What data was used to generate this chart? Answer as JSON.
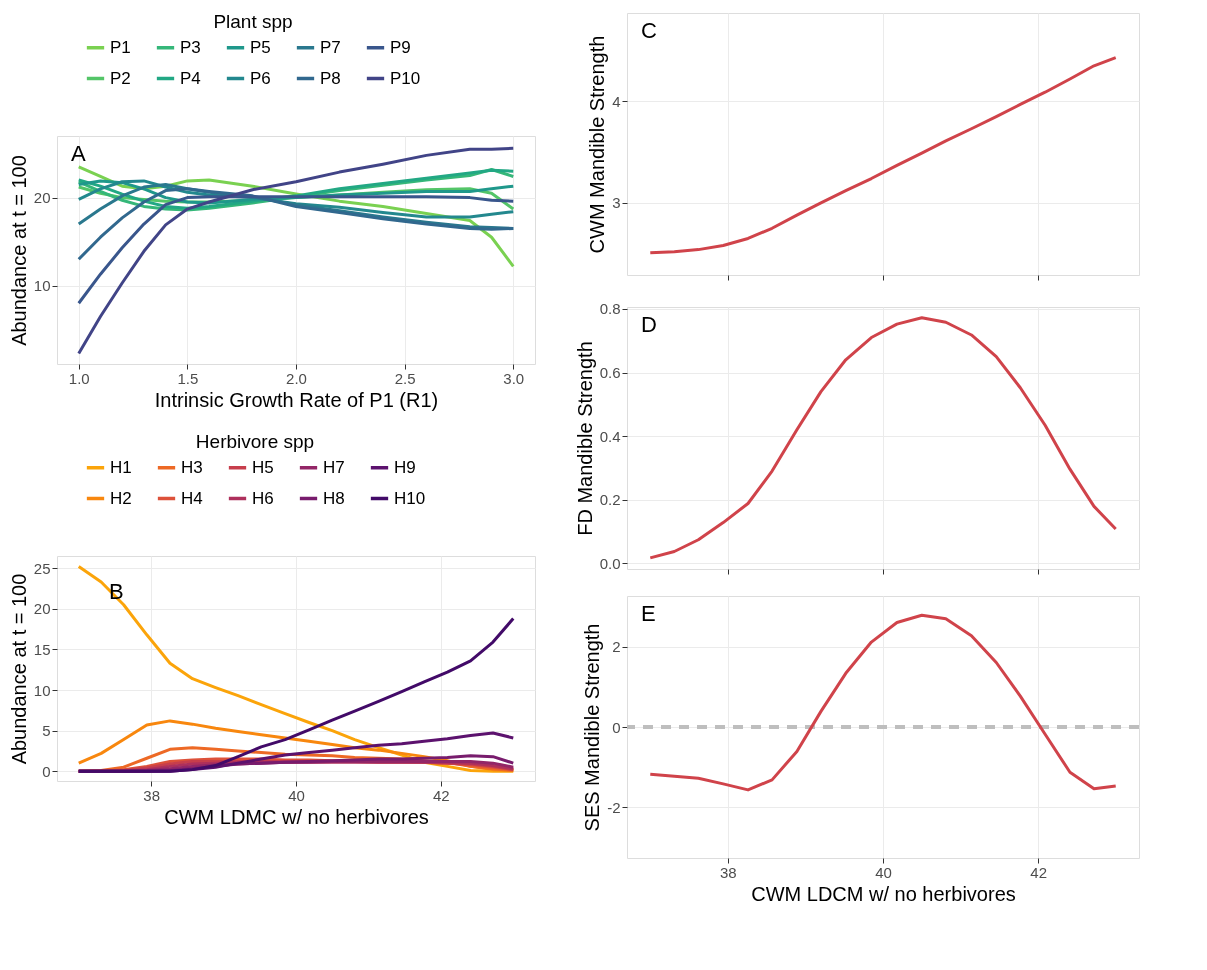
{
  "chart_data": [
    {
      "type": "line",
      "annotations": [
        "A"
      ],
      "xlabel": "Intrinsic Growth Rate of P1 (R1)",
      "ylabel": "Abundance at t = 100",
      "legend_title": "Plant spp",
      "legend": "top",
      "grid": true,
      "x": [
        1.0,
        1.1,
        1.2,
        1.3,
        1.4,
        1.5,
        1.6,
        1.8,
        2.0,
        2.2,
        2.4,
        2.6,
        2.8,
        2.9,
        3.0
      ],
      "xlim": [
        0.9,
        3.1
      ],
      "xticks": [
        {
          "value": 1,
          "label": "1.0"
        },
        1.5,
        {
          "value": 2,
          "label": "2.0"
        },
        2.5,
        {
          "value": 3,
          "label": "3.0"
        }
      ],
      "ylim": [
        1.1,
        27.0
      ],
      "yticks": [
        10,
        20
      ],
      "series": [
        {
          "name": "P1",
          "color": "#7ad151",
          "values": [
            23.5,
            22.4,
            21.3,
            21.0,
            21.3,
            21.9,
            22.0,
            21.3,
            20.4,
            19.6,
            19.0,
            18.2,
            17.4,
            15.5,
            12.2
          ]
        },
        {
          "name": "P2",
          "color": "#54c568",
          "values": [
            21.2,
            20.5,
            20.0,
            19.8,
            19.6,
            19.5,
            19.5,
            19.7,
            20.0,
            20.3,
            20.6,
            20.9,
            21.0,
            20.5,
            18.7
          ]
        },
        {
          "name": "P3",
          "color": "#35b779",
          "values": [
            21.8,
            20.7,
            19.7,
            19.0,
            18.7,
            18.6,
            18.8,
            19.4,
            20.1,
            20.8,
            21.4,
            22.0,
            22.5,
            23.2,
            22.4
          ]
        },
        {
          "name": "P4",
          "color": "#22a884",
          "values": [
            22.0,
            21.3,
            20.4,
            19.6,
            19.0,
            18.8,
            19.0,
            19.6,
            20.2,
            21.0,
            21.6,
            22.2,
            22.8,
            23.1,
            23.0
          ]
        },
        {
          "name": "P5",
          "color": "#1f988b",
          "values": [
            21.5,
            21.9,
            21.7,
            21.0,
            20.0,
            19.5,
            19.4,
            19.8,
            20.0,
            20.3,
            20.5,
            20.7,
            20.7,
            21.0,
            21.3
          ]
        },
        {
          "name": "P6",
          "color": "#23888e",
          "values": [
            19.8,
            21.0,
            21.8,
            21.9,
            21.2,
            20.6,
            20.3,
            20.0,
            19.3,
            18.9,
            18.3,
            17.8,
            17.8,
            18.1,
            18.4
          ]
        },
        {
          "name": "P7",
          "color": "#2a788e",
          "values": [
            17.0,
            18.7,
            20.2,
            21.2,
            21.5,
            21.0,
            20.6,
            20.1,
            19.2,
            18.5,
            17.8,
            17.2,
            16.7,
            16.6,
            16.5
          ]
        },
        {
          "name": "P8",
          "color": "#31688e",
          "values": [
            13.0,
            15.5,
            17.7,
            19.5,
            20.8,
            21.0,
            20.7,
            20.2,
            19.0,
            18.3,
            17.6,
            17.0,
            16.5,
            16.4,
            16.5
          ]
        },
        {
          "name": "P9",
          "color": "#39568c",
          "values": [
            8.0,
            11.3,
            14.3,
            17.0,
            19.2,
            20.0,
            20.1,
            20.1,
            20.1,
            20.1,
            20.1,
            20.1,
            20.0,
            19.7,
            19.6
          ]
        },
        {
          "name": "P10",
          "color": "#414487",
          "values": [
            2.3,
            6.5,
            10.3,
            13.9,
            16.9,
            18.7,
            19.5,
            20.9,
            21.8,
            22.9,
            23.8,
            24.8,
            25.5,
            25.5,
            25.6
          ]
        }
      ]
    },
    {
      "type": "line",
      "annotations": [
        "B"
      ],
      "xlabel": "CWM LDMC w/ no herbivores",
      "ylabel": "Abundance at t = 100",
      "legend_title": "Herbivore spp",
      "legend": "top",
      "grid": true,
      "x": [
        37.0,
        37.31,
        37.62,
        37.94,
        38.26,
        38.57,
        38.89,
        39.2,
        39.52,
        39.85,
        40.18,
        40.5,
        40.81,
        41.14,
        41.46,
        41.77,
        42.09,
        42.41,
        42.72,
        43.0
      ],
      "xlim": [
        36.7,
        43.3
      ],
      "xticks": [
        38,
        40,
        42
      ],
      "ylim": [
        -1.2,
        26.5
      ],
      "yticks": [
        0,
        5,
        10,
        15,
        20,
        25
      ],
      "series": [
        {
          "name": "H1",
          "color": "#fba40a",
          "values": [
            25.2,
            23.3,
            20.5,
            16.8,
            13.3,
            11.4,
            10.3,
            9.3,
            8.2,
            7.1,
            6.0,
            5.0,
            3.9,
            2.9,
            2.0,
            1.1,
            0.6,
            0.1,
            0.0,
            0.0
          ]
        },
        {
          "name": "H2",
          "color": "#f8870e",
          "values": [
            1.0,
            2.2,
            3.9,
            5.7,
            6.2,
            5.8,
            5.3,
            4.9,
            4.5,
            4.1,
            3.7,
            3.3,
            2.9,
            2.6,
            2.2,
            1.8,
            1.3,
            0.6,
            0.2,
            0.1
          ]
        },
        {
          "name": "H3",
          "color": "#ed6925",
          "values": [
            0.0,
            0.1,
            0.5,
            1.6,
            2.7,
            2.9,
            2.7,
            2.5,
            2.3,
            2.1,
            2.0,
            1.9,
            1.7,
            1.6,
            1.5,
            1.3,
            1.1,
            0.6,
            0.3,
            0.1
          ]
        },
        {
          "name": "H4",
          "color": "#dd513a",
          "values": [
            0.0,
            0.0,
            0.2,
            0.6,
            1.2,
            1.4,
            1.5,
            1.5,
            1.5,
            1.4,
            1.4,
            1.3,
            1.3,
            1.2,
            1.2,
            1.1,
            1.0,
            0.8,
            0.5,
            0.2
          ]
        },
        {
          "name": "H5",
          "color": "#c73e4c",
          "values": [
            0.0,
            0.0,
            0.1,
            0.4,
            0.9,
            1.2,
            1.2,
            1.2,
            1.2,
            1.2,
            1.2,
            1.2,
            1.2,
            1.1,
            1.1,
            1.1,
            1.0,
            0.9,
            0.6,
            0.2
          ]
        },
        {
          "name": "H6",
          "color": "#ae305c",
          "values": [
            0.0,
            0.0,
            0.0,
            0.2,
            0.6,
            0.9,
            1.0,
            1.1,
            1.1,
            1.1,
            1.1,
            1.1,
            1.1,
            1.1,
            1.1,
            1.1,
            1.1,
            1.0,
            0.7,
            0.3
          ]
        },
        {
          "name": "H7",
          "color": "#932667",
          "values": [
            0.0,
            0.0,
            0.0,
            0.1,
            0.3,
            0.6,
            0.8,
            0.9,
            1.0,
            1.1,
            1.1,
            1.2,
            1.2,
            1.2,
            1.2,
            1.2,
            1.2,
            1.2,
            1.0,
            0.5
          ]
        },
        {
          "name": "H8",
          "color": "#781c6d",
          "values": [
            0.0,
            0.0,
            0.0,
            0.0,
            0.1,
            0.3,
            0.6,
            0.9,
            1.0,
            1.1,
            1.2,
            1.3,
            1.4,
            1.5,
            1.5,
            1.6,
            1.7,
            1.9,
            1.8,
            1.0
          ]
        },
        {
          "name": "H9",
          "color": "#5c126e",
          "values": [
            0.0,
            0.0,
            0.0,
            0.0,
            0.0,
            0.2,
            0.5,
            1.0,
            1.5,
            2.0,
            2.3,
            2.6,
            2.9,
            3.2,
            3.4,
            3.7,
            4.0,
            4.4,
            4.7,
            4.1
          ]
        },
        {
          "name": "H10",
          "color": "#420a68",
          "values": [
            0.0,
            0.0,
            0.0,
            0.0,
            0.0,
            0.2,
            0.7,
            1.8,
            3.0,
            3.9,
            5.1,
            6.3,
            7.4,
            8.6,
            9.8,
            11.0,
            12.2,
            13.6,
            15.9,
            18.8
          ]
        }
      ]
    },
    {
      "type": "line",
      "annotations": [
        "C"
      ],
      "ylabel": "CWM Mandible Strength",
      "grid": true,
      "tick_labels": "y",
      "x": [
        37.0,
        37.31,
        37.62,
        37.94,
        38.26,
        38.57,
        38.89,
        39.2,
        39.52,
        39.85,
        40.18,
        40.5,
        40.81,
        41.14,
        41.46,
        41.77,
        42.09,
        42.41,
        42.72,
        43.0
      ],
      "xlim": [
        36.7,
        43.3
      ],
      "xticks": [
        38,
        40,
        42
      ],
      "ylim": [
        2.29,
        4.87
      ],
      "yticks": [
        3,
        4
      ],
      "series": [
        {
          "color": "#d0434a",
          "values": [
            2.51,
            2.52,
            2.54,
            2.58,
            2.65,
            2.75,
            2.88,
            3.0,
            3.12,
            3.24,
            3.37,
            3.49,
            3.61,
            3.73,
            3.85,
            3.97,
            4.09,
            4.22,
            4.35,
            4.43
          ]
        }
      ]
    },
    {
      "type": "line",
      "annotations": [
        "D"
      ],
      "ylabel": "FD Mandible Strength",
      "grid": true,
      "tick_labels": "y",
      "x": [
        37.0,
        37.31,
        37.62,
        37.94,
        38.26,
        38.57,
        38.89,
        39.2,
        39.52,
        39.85,
        40.18,
        40.5,
        40.81,
        41.14,
        41.46,
        41.77,
        42.09,
        42.41,
        42.72,
        43.0
      ],
      "xlim": [
        36.7,
        43.3
      ],
      "xticks": [
        38,
        40,
        42
      ],
      "ylim": [
        -0.018,
        0.806
      ],
      "yticks": [
        {
          "value": 0,
          "label": "0.0"
        },
        0.2,
        0.4,
        0.6,
        0.8
      ],
      "series": [
        {
          "color": "#d0434a",
          "values": [
            0.017,
            0.037,
            0.074,
            0.128,
            0.188,
            0.29,
            0.42,
            0.54,
            0.64,
            0.71,
            0.752,
            0.772,
            0.758,
            0.718,
            0.65,
            0.552,
            0.434,
            0.296,
            0.179,
            0.108
          ]
        }
      ]
    },
    {
      "type": "line",
      "annotations": [
        "E"
      ],
      "xlabel": "CWM LDCM w/ no herbivores",
      "ylabel": "SES Mandible Strength",
      "grid": true,
      "x": [
        37.0,
        37.31,
        37.62,
        37.94,
        38.26,
        38.57,
        38.89,
        39.2,
        39.52,
        39.85,
        40.18,
        40.5,
        40.81,
        41.14,
        41.46,
        41.77,
        42.09,
        42.41,
        42.72,
        43.0
      ],
      "xlim": [
        36.7,
        43.3
      ],
      "xticks": [
        38,
        40,
        42
      ],
      "ylim": [
        -3.27,
        3.27
      ],
      "yticks": [
        -2,
        0,
        2
      ],
      "ref_lines": [
        {
          "axis": "y",
          "value": 0,
          "color": "#bebebe",
          "line_style": "dashed"
        }
      ],
      "series": [
        {
          "color": "#d0434a",
          "values": [
            -1.18,
            -1.23,
            -1.28,
            -1.42,
            -1.57,
            -1.32,
            -0.61,
            0.39,
            1.34,
            2.12,
            2.61,
            2.79,
            2.7,
            2.28,
            1.61,
            0.77,
            -0.18,
            -1.13,
            -1.54,
            -1.47
          ]
        }
      ]
    }
  ]
}
